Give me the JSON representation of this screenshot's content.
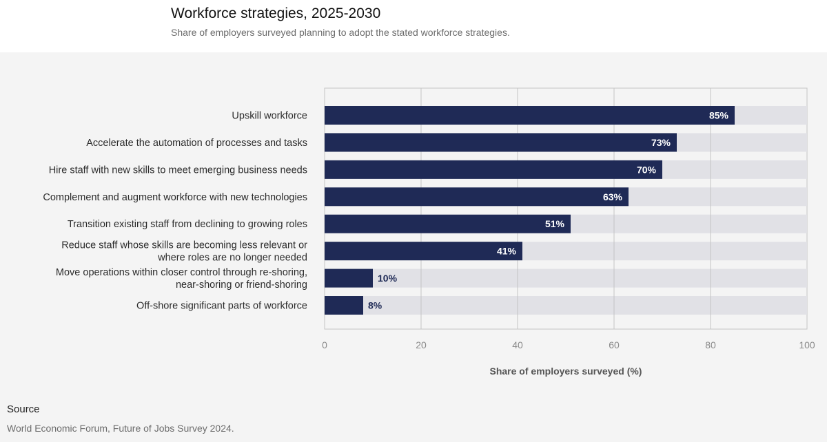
{
  "header": {
    "title": "Workforce strategies, 2025-2030",
    "subtitle": "Share of employers surveyed planning to adopt the stated workforce strategies."
  },
  "source": {
    "label": "Source",
    "text": "World Economic Forum, Future of Jobs Survey 2024."
  },
  "colors": {
    "bar": "#1f2a56",
    "track": "#e1e1e6",
    "panel": "#f4f4f4",
    "grid": "#c4c4c4"
  },
  "chart_data": {
    "type": "bar",
    "orientation": "horizontal",
    "title": "Workforce strategies, 2025-2030",
    "subtitle": "Share of employers surveyed planning to adopt the stated workforce strategies.",
    "xlabel": "Share of employers surveyed (%)",
    "ylabel": "",
    "xlim": [
      0,
      100
    ],
    "xticks": [
      0,
      20,
      40,
      60,
      80,
      100
    ],
    "grid": true,
    "categories": [
      [
        "Upskill workforce"
      ],
      [
        "Accelerate the automation of processes and tasks"
      ],
      [
        "Hire staff with new skills to meet emerging business needs"
      ],
      [
        "Complement and augment workforce with new technologies"
      ],
      [
        "Transition existing staff from declining to growing roles"
      ],
      [
        "Reduce staff whose skills are becoming less relevant or",
        "where roles are no longer needed"
      ],
      [
        "Move operations within closer control through re-shoring,",
        "near-shoring or friend-shoring"
      ],
      [
        "Off-shore significant parts of workforce"
      ]
    ],
    "values": [
      85,
      73,
      70,
      63,
      51,
      41,
      10,
      8
    ],
    "value_labels": [
      "85%",
      "73%",
      "70%",
      "63%",
      "51%",
      "41%",
      "10%",
      "8%"
    ]
  }
}
